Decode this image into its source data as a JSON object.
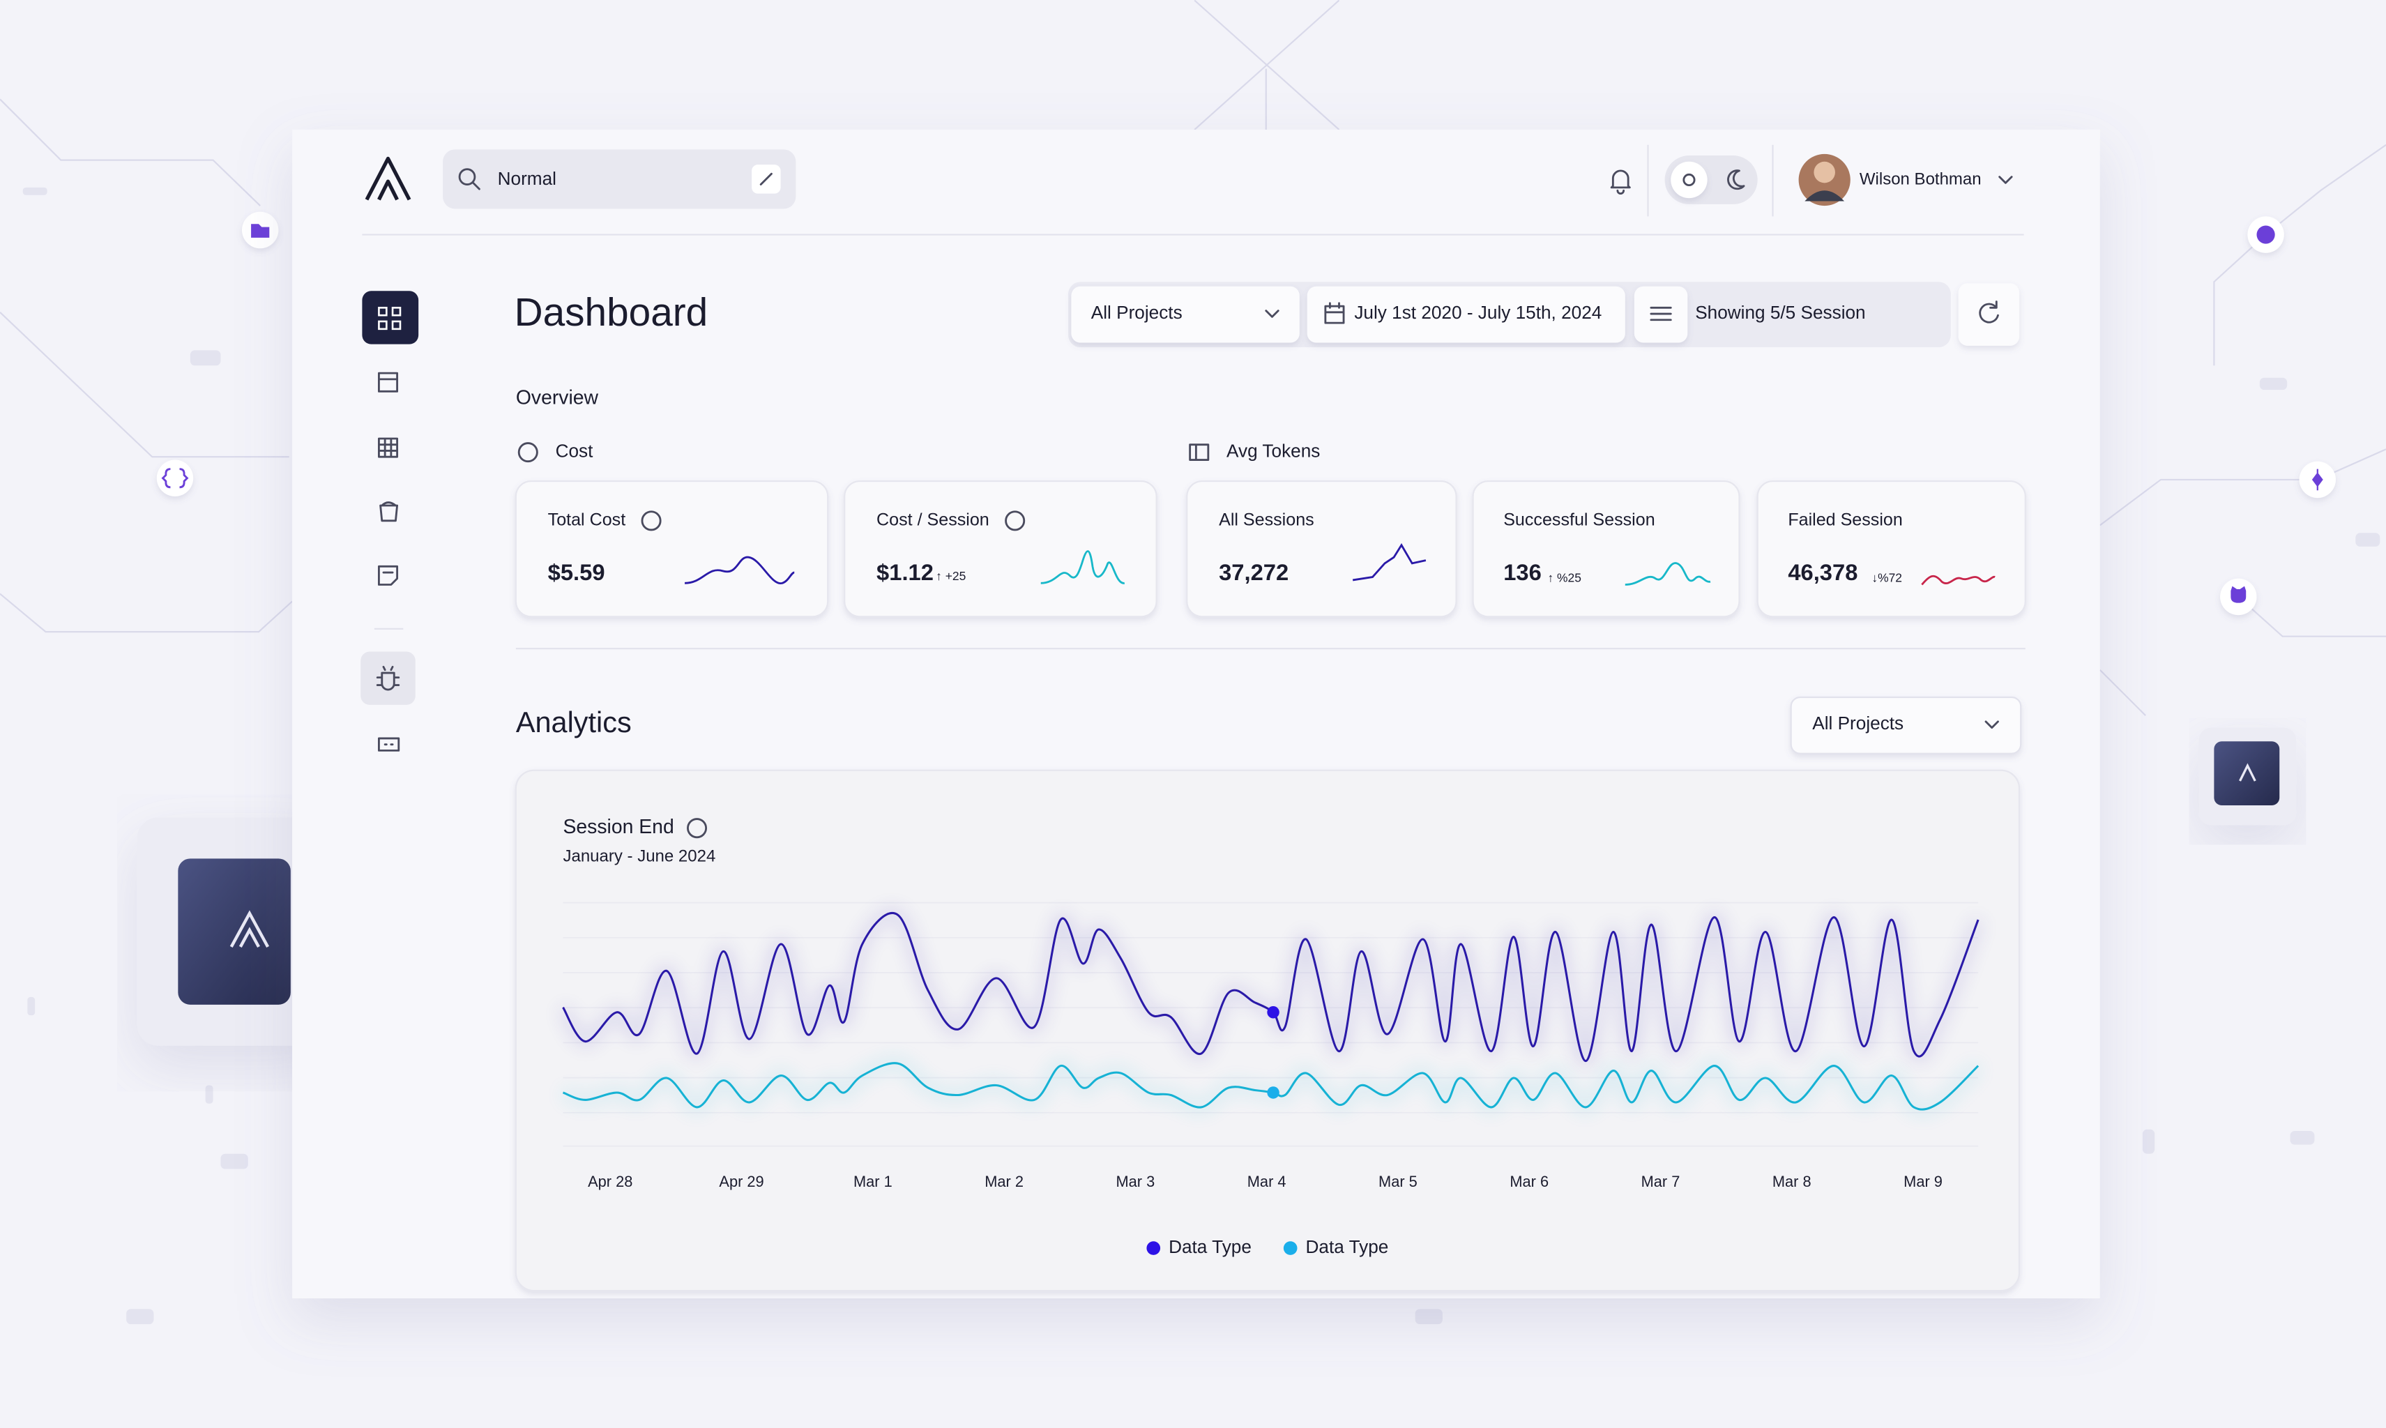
{
  "header": {
    "search": "Normal",
    "user": "Wilson Bothman"
  },
  "page_title": "Dashboard",
  "filters": {
    "project": "All Projects",
    "date_range": "July 1st 2020 - July 15th, 2024",
    "sessions": "Showing 5/5 Session"
  },
  "overview": {
    "title": "Overview",
    "groups": [
      "Cost",
      "Avg Tokens"
    ],
    "cards": [
      {
        "label": "Total Cost",
        "value": "$5.59"
      },
      {
        "label": "Cost / Session",
        "value": "$1.12",
        "delta": "↑ +25"
      },
      {
        "label": "All Sessions",
        "value": "37,272"
      },
      {
        "label": "Successful Session",
        "value": "136",
        "delta": "↑ %25"
      },
      {
        "label": "Failed Session",
        "value": "46,378",
        "delta": "↓%72"
      }
    ]
  },
  "analytics": {
    "title": "Analytics",
    "project": "All Projects"
  },
  "chart_data": {
    "type": "line",
    "title": "Session End",
    "subtitle": "January - June 2024",
    "x": [
      -0.36,
      -0.19,
      0.05,
      0.22,
      0.43,
      0.66,
      0.86,
      1.06,
      1.3,
      1.5,
      1.67,
      1.78,
      1.92,
      2.19,
      2.42,
      2.65,
      2.94,
      3.23,
      3.43,
      3.6,
      3.72,
      3.89,
      4.1,
      4.27,
      4.5,
      4.71,
      4.91,
      5.05,
      5.14,
      5.3,
      5.55,
      5.72,
      5.92,
      6.19,
      6.36,
      6.48,
      6.71,
      6.88,
      7.03,
      7.2,
      7.43,
      7.64,
      7.78,
      7.93,
      8.12,
      8.41,
      8.6,
      8.8,
      9.03,
      9.32,
      9.55,
      9.76,
      9.93,
      10.13,
      10.42
    ],
    "xlim": [
      -0.36,
      10.42
    ],
    "xticks": [
      {
        "value": 0,
        "label": "Apr 28"
      },
      {
        "value": 1,
        "label": "Apr 29"
      },
      {
        "value": 2,
        "label": "Mar 1"
      },
      {
        "value": 3,
        "label": "Mar 2"
      },
      {
        "value": 4,
        "label": "Mar 3"
      },
      {
        "value": 5,
        "label": "Mar 4"
      },
      {
        "value": 6,
        "label": "Mar 5"
      },
      {
        "value": 7,
        "label": "Mar 6"
      },
      {
        "value": 8,
        "label": "Mar 7"
      },
      {
        "value": 9,
        "label": "Mar 8"
      },
      {
        "value": 10,
        "label": "Mar 9"
      }
    ],
    "ylim": [
      0,
      100
    ],
    "series": [
      {
        "name": "Data Type",
        "color": "#2a1aa8",
        "legend_color": "#2d12e6",
        "values": [
          57,
          43,
          55,
          46,
          72,
          38,
          80,
          44,
          83,
          46,
          66,
          51,
          83,
          95,
          64,
          48,
          69,
          49,
          93,
          75,
          89,
          77,
          55,
          53,
          38,
          63,
          59,
          55,
          49,
          85,
          39,
          80,
          46,
          85,
          43,
          83,
          39,
          86,
          41,
          88,
          35,
          88,
          39,
          91,
          39,
          94,
          43,
          88,
          39,
          94,
          41,
          93,
          39,
          52,
          93
        ]
      },
      {
        "name": "Data Type",
        "color": "#16b2d4",
        "legend_color": "#1aaeea",
        "values": [
          22,
          19,
          22,
          19,
          28,
          16,
          27,
          18,
          29,
          19,
          26,
          22,
          29,
          34,
          24,
          21,
          25,
          19,
          33,
          24,
          28,
          30,
          22,
          21,
          16,
          24,
          23,
          22,
          21,
          30,
          17,
          25,
          21,
          30,
          18,
          28,
          16,
          28,
          19,
          30,
          16,
          31,
          18,
          31,
          18,
          33,
          19,
          28,
          18,
          33,
          18,
          29,
          16,
          18,
          33
        ]
      }
    ]
  }
}
